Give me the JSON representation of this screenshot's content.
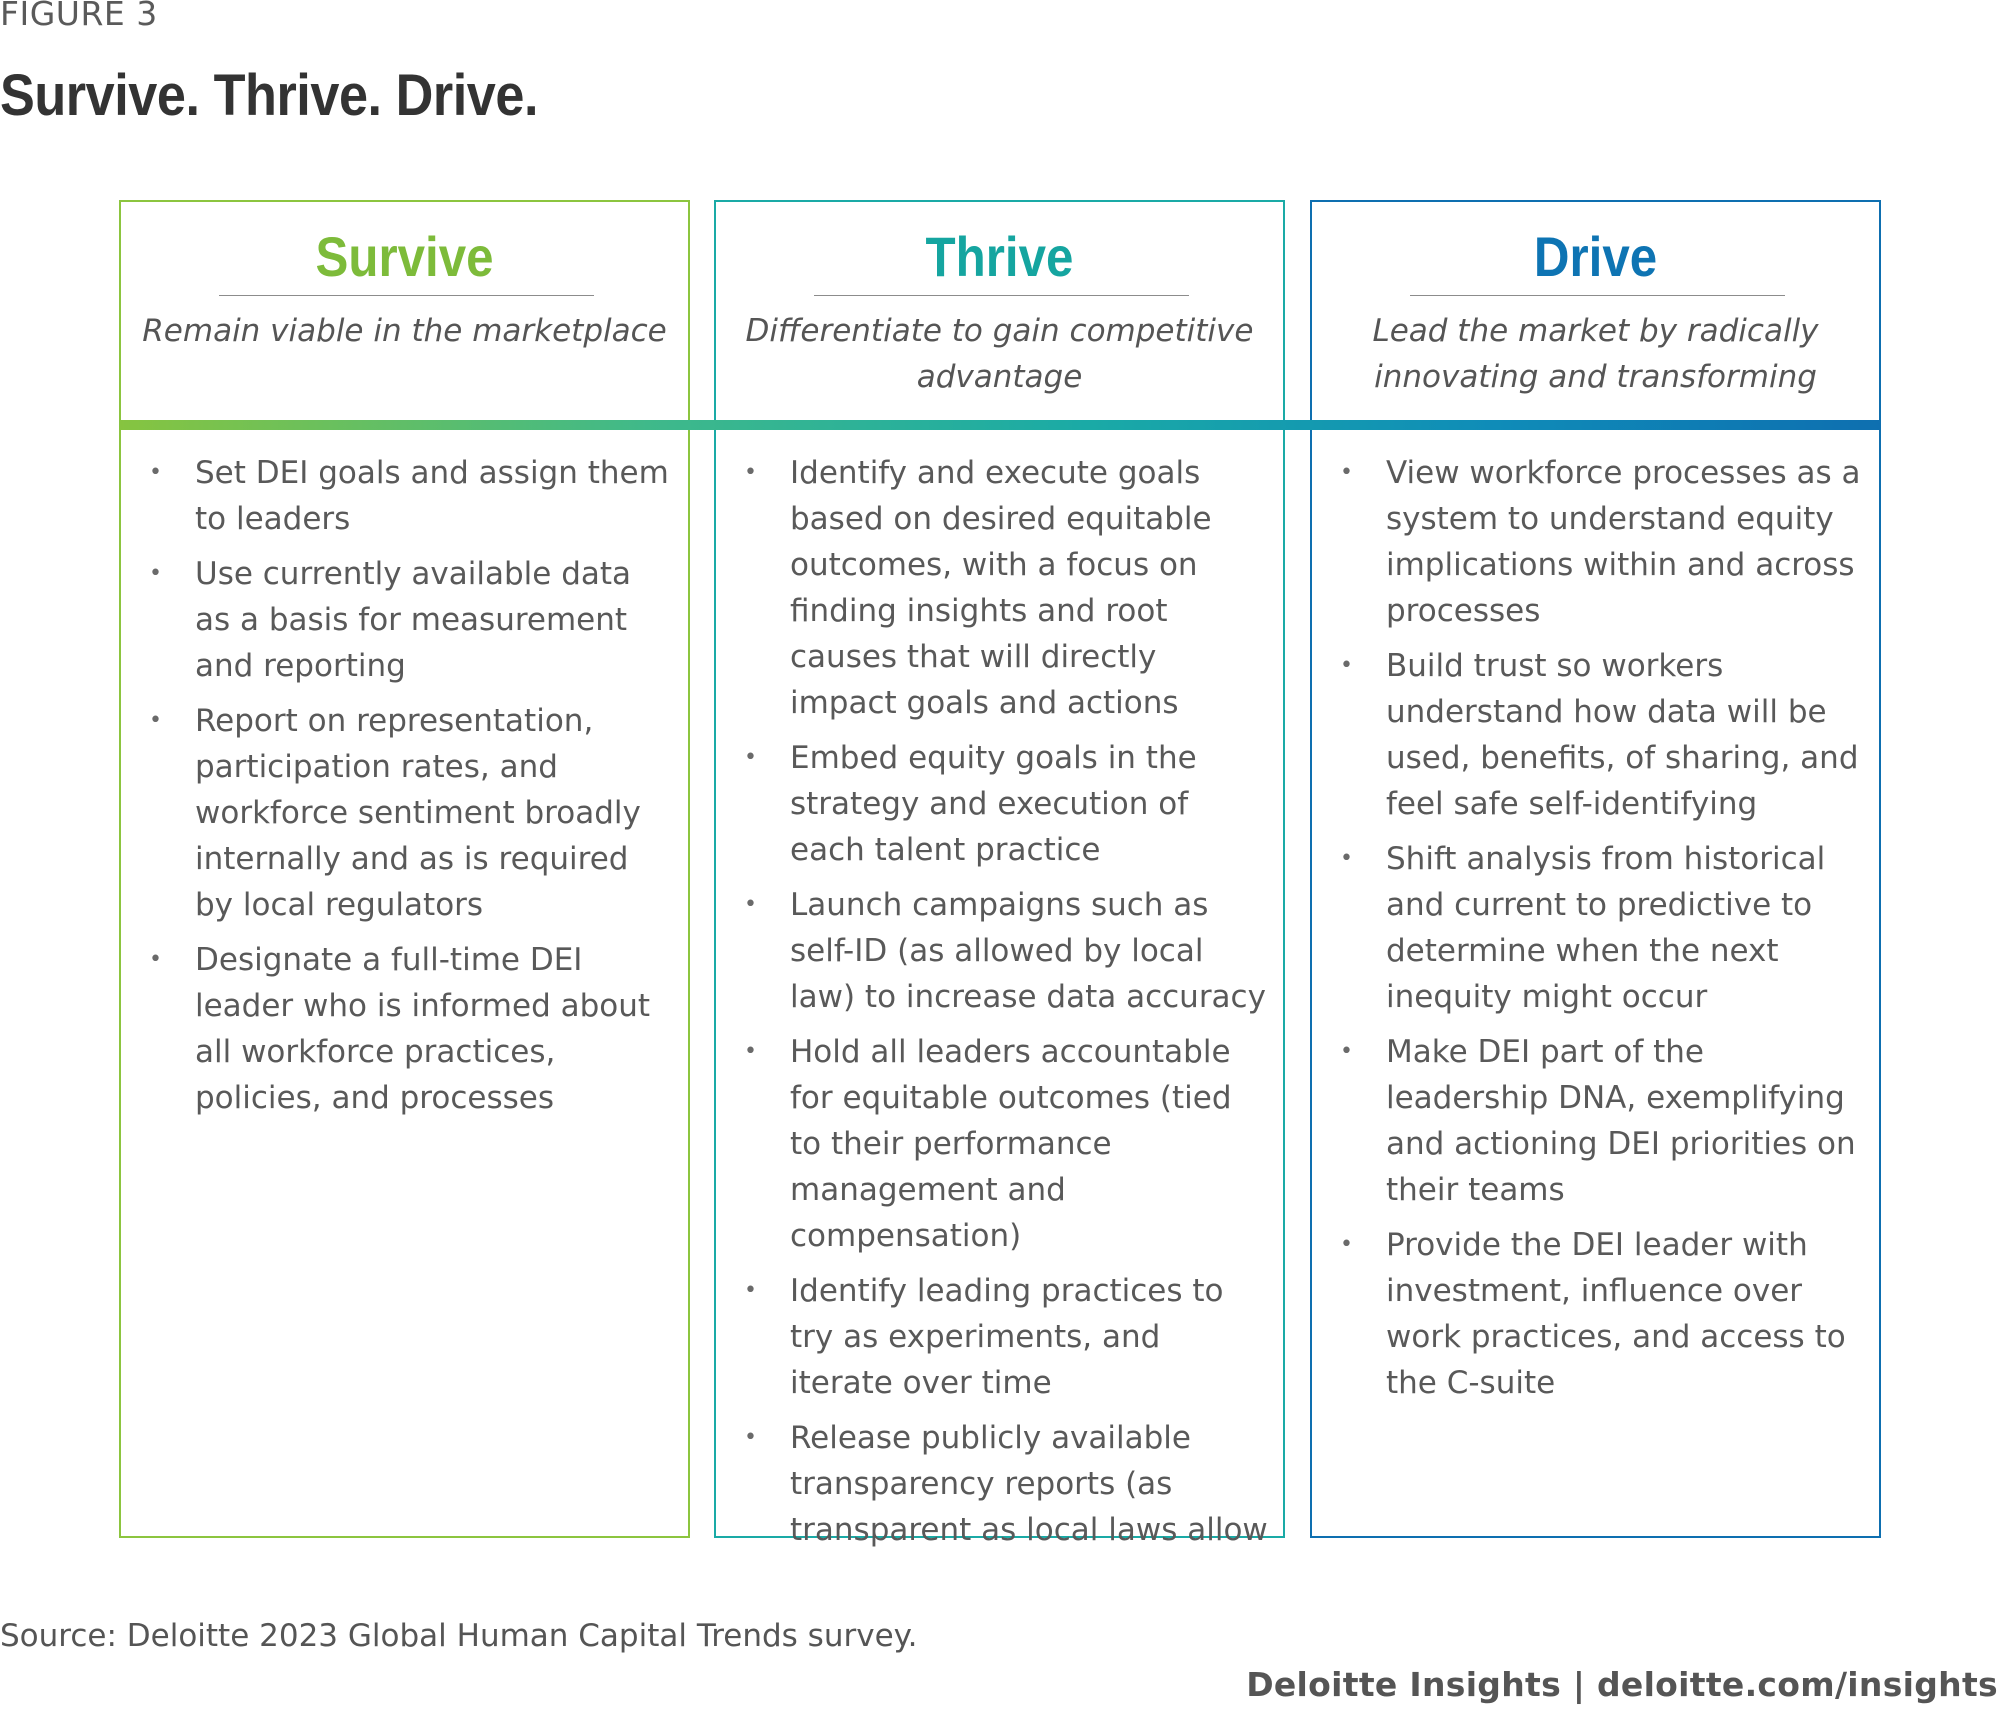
{
  "figure_label": "FIGURE 3",
  "title": "Survive. Thrive. Drive.",
  "colors": {
    "survive": "#8cc53f",
    "thrive": "#1aaaa6",
    "drive": "#0e6fb0"
  },
  "columns": [
    {
      "name": "Survive",
      "description": "Remain viable in the marketplace",
      "bullets": [
        "Set DEI goals and assign them to leaders",
        "Use currently available data as a basis for measurement and reporting",
        "Report on representation, participation rates, and workforce sentiment broadly internally and as is required by local regulators",
        "Designate a full-time DEI leader who is informed about all workforce practices, policies, and processes"
      ]
    },
    {
      "name": "Thrive",
      "description": "Differentiate to gain competitive advantage",
      "bullets": [
        "Identify and execute goals based on desired equitable outcomes, with a focus on finding insights and root causes that will directly impact goals and actions",
        "Embed equity goals in the strategy and execution of each talent practice",
        "Launch campaigns such as self-ID (as allowed by local law) to increase data accuracy",
        "Hold all leaders accountable for equitable outcomes (tied to their performance management and compensation)",
        "Identify leading practices to try as experiments, and iterate over time",
        "Release publicly available transparency reports (as transparent as local laws allow"
      ]
    },
    {
      "name": "Drive",
      "description": "Lead the market by radically innovating and transforming",
      "bullets": [
        "View workforce processes as a system to understand equity implications within and across processes",
        "Build trust so workers understand how data will be used, benefits, of sharing, and feel safe self-identifying",
        "Shift analysis from historical and current to predictive to determine when the next inequity might occur",
        "Make DEI part of the leadership DNA, exemplifying and actioning DEI priorities on their teams",
        "Provide the DEI leader with investment, influence over work practices, and access to the C-suite"
      ]
    }
  ],
  "source": "Source: Deloitte 2023 Global Human Capital Trends survey.",
  "credit": "Deloitte Insights | deloitte.com/insights"
}
